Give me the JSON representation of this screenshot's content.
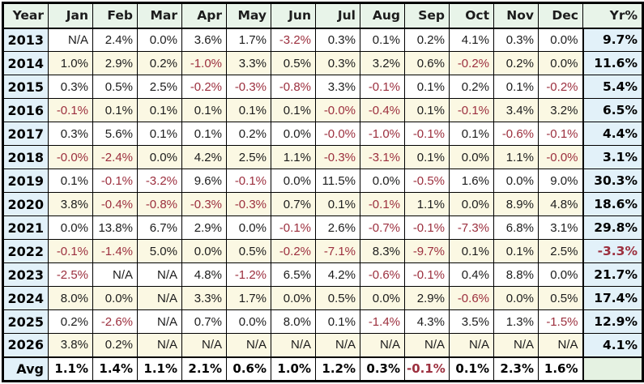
{
  "chart_data": {
    "type": "table",
    "columns": [
      "Year",
      "Jan",
      "Feb",
      "Mar",
      "Apr",
      "May",
      "Jun",
      "Jul",
      "Aug",
      "Sep",
      "Oct",
      "Nov",
      "Dec",
      "Yr%"
    ],
    "rows": [
      {
        "year": "2013",
        "monthly": [
          "N/A",
          "2.4%",
          "0.0%",
          "3.6%",
          "1.7%",
          "-3.2%",
          "0.3%",
          "0.1%",
          "0.2%",
          "4.1%",
          "0.3%",
          "0.0%"
        ],
        "yr_total": "9.7%"
      },
      {
        "year": "2014",
        "monthly": [
          "1.0%",
          "2.9%",
          "0.2%",
          "-1.0%",
          "3.3%",
          "0.5%",
          "0.3%",
          "3.2%",
          "0.6%",
          "-0.2%",
          "0.2%",
          "0.0%"
        ],
        "yr_total": "11.6%"
      },
      {
        "year": "2015",
        "monthly": [
          "0.3%",
          "0.5%",
          "2.5%",
          "-0.2%",
          "-0.3%",
          "-0.8%",
          "3.3%",
          "-0.1%",
          "0.1%",
          "0.2%",
          "0.1%",
          "-0.2%"
        ],
        "yr_total": "5.4%"
      },
      {
        "year": "2016",
        "monthly": [
          "-0.1%",
          "0.1%",
          "0.1%",
          "0.1%",
          "0.1%",
          "0.1%",
          "-0.0%",
          "-0.4%",
          "0.1%",
          "-0.1%",
          "3.4%",
          "3.2%"
        ],
        "yr_total": "6.5%"
      },
      {
        "year": "2017",
        "monthly": [
          "0.3%",
          "5.6%",
          "0.1%",
          "0.1%",
          "0.2%",
          "0.0%",
          "-0.0%",
          "-1.0%",
          "-0.1%",
          "0.1%",
          "-0.6%",
          "-0.1%"
        ],
        "yr_total": "4.4%"
      },
      {
        "year": "2018",
        "monthly": [
          "-0.0%",
          "-2.4%",
          "0.0%",
          "4.2%",
          "2.5%",
          "1.1%",
          "-0.3%",
          "-3.1%",
          "0.1%",
          "0.0%",
          "1.1%",
          "-0.0%"
        ],
        "yr_total": "3.1%"
      },
      {
        "year": "2019",
        "monthly": [
          "0.1%",
          "-0.1%",
          "-3.2%",
          "9.6%",
          "-0.1%",
          "0.0%",
          "11.5%",
          "0.0%",
          "-0.5%",
          "1.6%",
          "0.0%",
          "9.0%"
        ],
        "yr_total": "30.3%"
      },
      {
        "year": "2020",
        "monthly": [
          "3.8%",
          "-0.4%",
          "-0.8%",
          "-0.3%",
          "-0.3%",
          "0.7%",
          "0.1%",
          "-0.1%",
          "1.1%",
          "0.0%",
          "8.9%",
          "4.8%"
        ],
        "yr_total": "18.6%"
      },
      {
        "year": "2021",
        "monthly": [
          "0.0%",
          "13.8%",
          "6.7%",
          "2.9%",
          "0.0%",
          "-0.1%",
          "2.6%",
          "-0.7%",
          "-0.1%",
          "-7.3%",
          "6.8%",
          "3.1%"
        ],
        "yr_total": "29.8%"
      },
      {
        "year": "2022",
        "monthly": [
          "-0.1%",
          "-1.4%",
          "5.0%",
          "0.0%",
          "0.5%",
          "-0.2%",
          "-7.1%",
          "8.3%",
          "-9.7%",
          "0.1%",
          "0.1%",
          "2.5%"
        ],
        "yr_total": "-3.3%"
      },
      {
        "year": "2023",
        "monthly": [
          "-2.5%",
          "N/A",
          "N/A",
          "4.8%",
          "-1.2%",
          "6.5%",
          "4.2%",
          "-0.6%",
          "-0.1%",
          "0.4%",
          "8.8%",
          "0.0%"
        ],
        "yr_total": "21.7%"
      },
      {
        "year": "2024",
        "monthly": [
          "8.0%",
          "0.0%",
          "N/A",
          "3.3%",
          "1.7%",
          "0.0%",
          "0.5%",
          "0.0%",
          "2.9%",
          "-0.6%",
          "0.0%",
          "0.5%"
        ],
        "yr_total": "17.4%"
      },
      {
        "year": "2025",
        "monthly": [
          "0.2%",
          "-2.6%",
          "N/A",
          "0.7%",
          "0.0%",
          "8.0%",
          "0.1%",
          "-1.4%",
          "4.3%",
          "3.5%",
          "1.3%",
          "-1.5%"
        ],
        "yr_total": "12.9%"
      },
      {
        "year": "2026",
        "monthly": [
          "3.8%",
          "0.2%",
          "N/A",
          "N/A",
          "N/A",
          "N/A",
          "N/A",
          "N/A",
          "N/A",
          "N/A",
          "N/A",
          "N/A"
        ],
        "yr_total": "4.1%"
      }
    ],
    "footer": {
      "label": "Avg",
      "monthly": [
        "1.1%",
        "1.4%",
        "1.1%",
        "2.1%",
        "0.6%",
        "1.0%",
        "1.2%",
        "0.3%",
        "-0.1%",
        "0.1%",
        "2.3%",
        "1.6%"
      ],
      "yr_total": ""
    },
    "layout": {
      "row_striping": "white / cream alternating by year",
      "negative_style": "dark red text"
    }
  },
  "colors": {
    "header_bg": "#e8f4e9",
    "year_col_bg": "#e2f1f9",
    "yr_col_bg": "#e2f1f9",
    "row_bg": "#ffffff",
    "row_alt_bg": "#fbf8e3",
    "avg_row_bg": "#e5f2e2",
    "negative_text": "#9c2f3e",
    "text": "#1c1c1c",
    "border": "#000000"
  }
}
